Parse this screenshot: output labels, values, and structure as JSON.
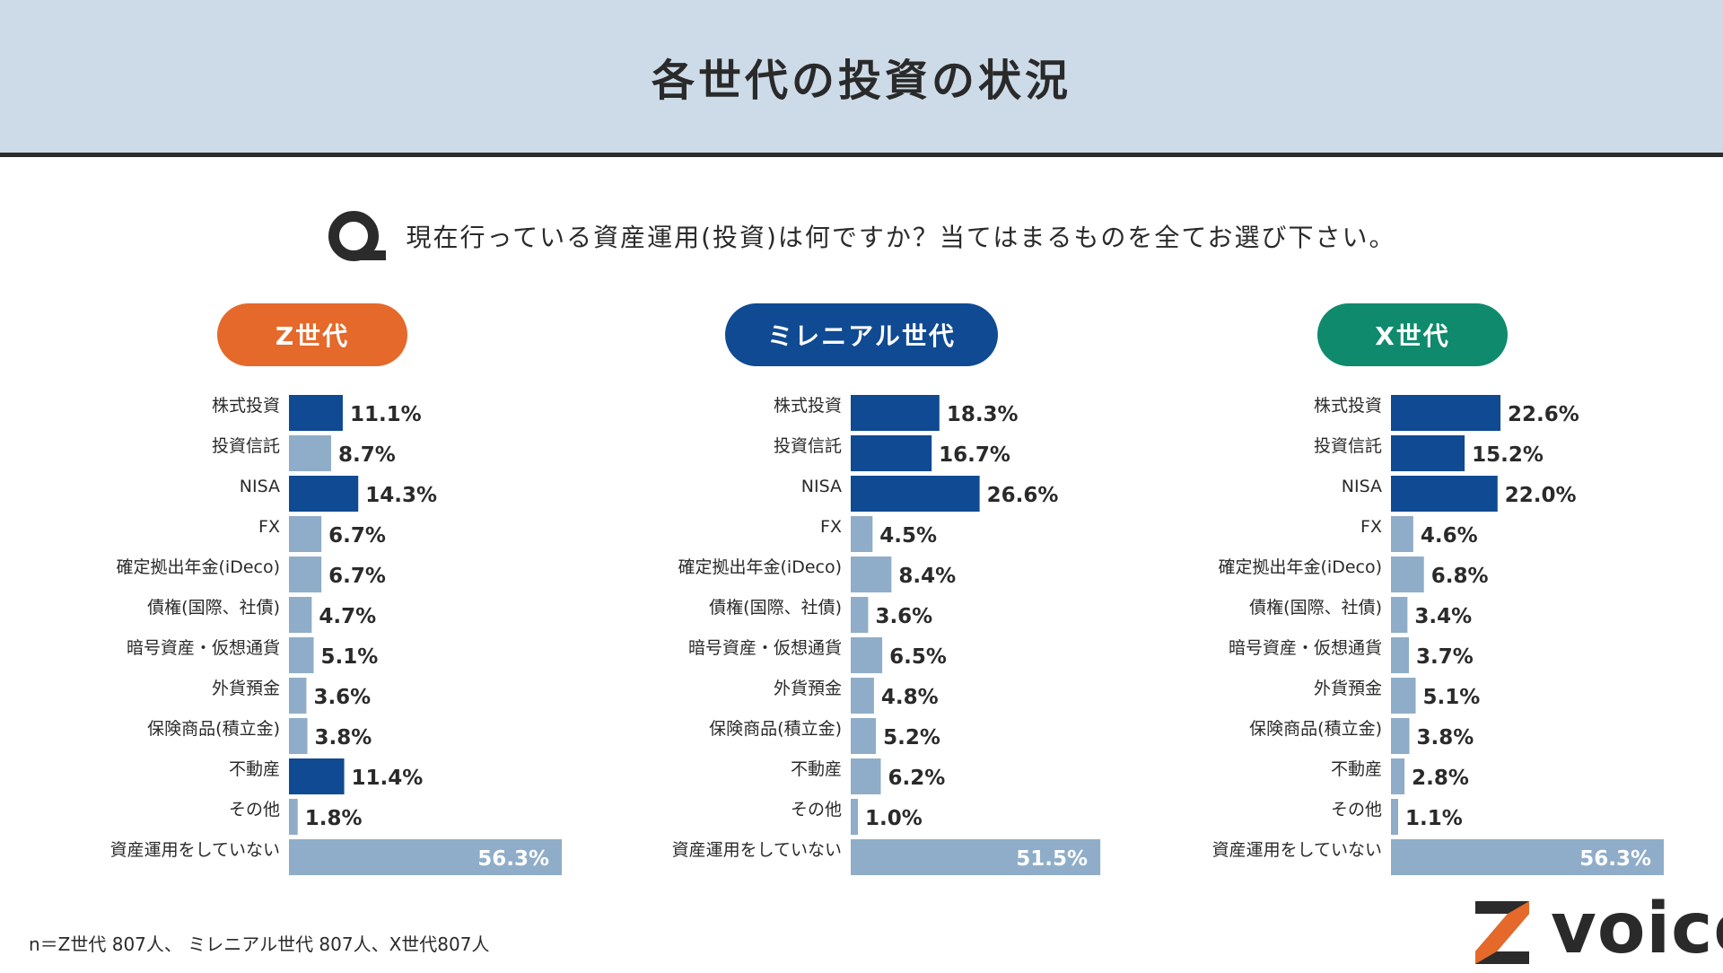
{
  "title": "各世代の投資の状況",
  "question": "現在行っている資産運用(投資)は何ですか？当てはまるものを全てお選び下さい。",
  "footnote": "n＝Z世代 807人、 ミレニアル世代 807人、X世代807人",
  "logo": {
    "text": "voice",
    "mark": "Z"
  },
  "colors": {
    "highlight": "#0f4a93",
    "bar": "#8fadc8",
    "header_bg": "#cddbe8",
    "z_pill": "#e4692a",
    "millennial_pill": "#0f4a93",
    "x_pill": "#0f8a6c",
    "logo_orange": "#e4692a"
  },
  "chart_data": [
    {
      "type": "bar",
      "orientation": "horizontal",
      "title": "Z世代",
      "pill_color": "#e4692a",
      "unit": "%",
      "categories": [
        "株式投資",
        "投資信託",
        "NISA",
        "FX",
        "確定拠出年金(iDeco)",
        "債権(国際、社債)",
        "暗号資産・仮想通貨",
        "外貨預金",
        "保険商品(積立金)",
        "不動産",
        "その他",
        "資産運用をしていない"
      ],
      "values": [
        11.1,
        8.7,
        14.3,
        6.7,
        6.7,
        4.7,
        5.1,
        3.6,
        3.8,
        11.4,
        1.8,
        56.3
      ],
      "labels": [
        "11.1%",
        "8.7%",
        "14.3%",
        "6.7%",
        "6.7%",
        "4.7%",
        "5.1%",
        "3.6%",
        "3.8%",
        "11.4%",
        "1.8%",
        "56.3%"
      ],
      "highlighted": [
        true,
        false,
        true,
        false,
        false,
        false,
        false,
        false,
        false,
        true,
        false,
        false
      ]
    },
    {
      "type": "bar",
      "orientation": "horizontal",
      "title": "ミレニアル世代",
      "pill_color": "#0f4a93",
      "unit": "%",
      "categories": [
        "株式投資",
        "投資信託",
        "NISA",
        "FX",
        "確定拠出年金(iDeco)",
        "債権(国際、社債)",
        "暗号資産・仮想通貨",
        "外貨預金",
        "保険商品(積立金)",
        "不動産",
        "その他",
        "資産運用をしていない"
      ],
      "values": [
        18.3,
        16.7,
        26.6,
        4.5,
        8.4,
        3.6,
        6.5,
        4.8,
        5.2,
        6.2,
        1.0,
        51.5
      ],
      "labels": [
        "18.3%",
        "16.7%",
        "26.6%",
        "4.5%",
        "8.4%",
        "3.6%",
        "6.5%",
        "4.8%",
        "5.2%",
        "6.2%",
        "1.0%",
        "51.5%"
      ],
      "highlighted": [
        true,
        true,
        true,
        false,
        false,
        false,
        false,
        false,
        false,
        false,
        false,
        false
      ]
    },
    {
      "type": "bar",
      "orientation": "horizontal",
      "title": "X世代",
      "pill_color": "#0f8a6c",
      "unit": "%",
      "categories": [
        "株式投資",
        "投資信託",
        "NISA",
        "FX",
        "確定拠出年金(iDeco)",
        "債権(国際、社債)",
        "暗号資産・仮想通貨",
        "外貨預金",
        "保険商品(積立金)",
        "不動産",
        "その他",
        "資産運用をしていない"
      ],
      "values": [
        22.6,
        15.2,
        22.0,
        4.6,
        6.8,
        3.4,
        3.7,
        5.1,
        3.8,
        2.8,
        1.1,
        56.3
      ],
      "labels": [
        "22.6%",
        "15.2%",
        "22.0%",
        "4.6%",
        "6.8%",
        "3.4%",
        "3.7%",
        "5.1%",
        "3.8%",
        "2.8%",
        "1.1%",
        "56.3%"
      ],
      "highlighted": [
        true,
        true,
        true,
        false,
        false,
        false,
        false,
        false,
        false,
        false,
        false,
        false
      ]
    }
  ]
}
